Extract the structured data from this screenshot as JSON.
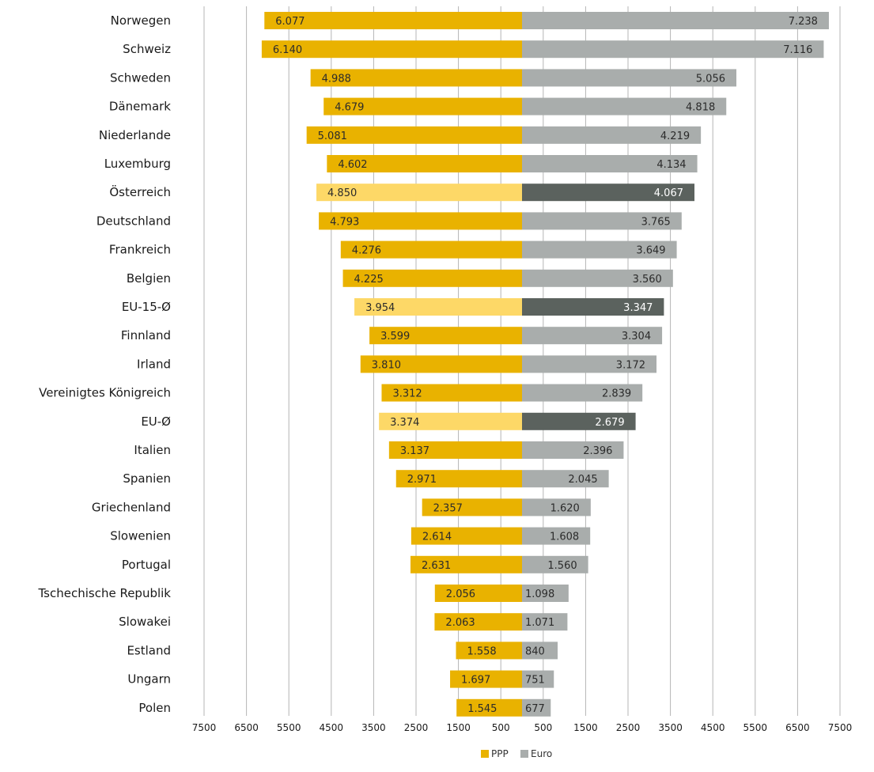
{
  "chart_data": {
    "type": "bar",
    "orientation": "horizontal-diverging",
    "title": "",
    "xlabel": "",
    "ylabel": "",
    "categories": [
      "Norwegen",
      "Schweiz",
      "Schweden",
      "Dänemark",
      "Niederlande",
      "Luxemburg",
      "Österreich",
      "Deutschland",
      "Frankreich",
      "Belgien",
      "EU-15-Ø",
      "Finnland",
      "Irland",
      "Vereinigtes Königreich",
      "EU-Ø",
      "Italien",
      "Spanien",
      "Griechenland",
      "Slowenien",
      "Portugal",
      "Tschechische Republik",
      "Slowakei",
      "Estland",
      "Ungarn",
      "Polen"
    ],
    "series": [
      {
        "name": "PPP",
        "side": "left",
        "color": "#e9b200",
        "highlight_color": "#fdd867",
        "values": [
          6077,
          6140,
          4988,
          4679,
          5081,
          4602,
          4850,
          4793,
          4276,
          4225,
          3954,
          3599,
          3810,
          3312,
          3374,
          3137,
          2971,
          2357,
          2614,
          2631,
          2056,
          2063,
          1558,
          1697,
          1545
        ],
        "labels": [
          "6.077",
          "6.140",
          "4.988",
          "4.679",
          "5.081",
          "4.602",
          "4.850",
          "4.793",
          "4.276",
          "4.225",
          "3.954",
          "3.599",
          "3.810",
          "3.312",
          "3.374",
          "3.137",
          "2.971",
          "2.357",
          "2.614",
          "2.631",
          "2.056",
          "2.063",
          "1.558",
          "1.697",
          "1.545"
        ]
      },
      {
        "name": "Euro",
        "side": "right",
        "color": "#a9adac",
        "highlight_color": "#5b625e",
        "values": [
          7238,
          7116,
          5056,
          4818,
          4219,
          4134,
          4067,
          3765,
          3649,
          3560,
          3347,
          3304,
          3172,
          2839,
          2679,
          2396,
          2045,
          1620,
          1608,
          1560,
          1098,
          1071,
          840,
          751,
          677
        ],
        "labels": [
          "7.238",
          "7.116",
          "5.056",
          "4.818",
          "4.219",
          "4.134",
          "4.067",
          "3.765",
          "3.649",
          "3.560",
          "3.347",
          "3.304",
          "3.172",
          "2.839",
          "2.679",
          "2.396",
          "2.045",
          "1.620",
          "1.608",
          "1.560",
          "1.098",
          "1.071",
          "840",
          "751",
          "677"
        ]
      }
    ],
    "highlighted_categories": [
      "Österreich",
      "EU-15-Ø",
      "EU-Ø"
    ],
    "xlim": [
      -7500,
      7500
    ],
    "x_ticks_left": [
      "7500",
      "6500",
      "5500",
      "4500",
      "3500",
      "2500",
      "1500",
      "500"
    ],
    "x_ticks_right": [
      "500",
      "1500",
      "2500",
      "3500",
      "4500",
      "5500",
      "6500",
      "7500"
    ],
    "grid": true,
    "legend": {
      "placement": "bottom-center",
      "entries": [
        "PPP",
        "Euro"
      ]
    }
  }
}
